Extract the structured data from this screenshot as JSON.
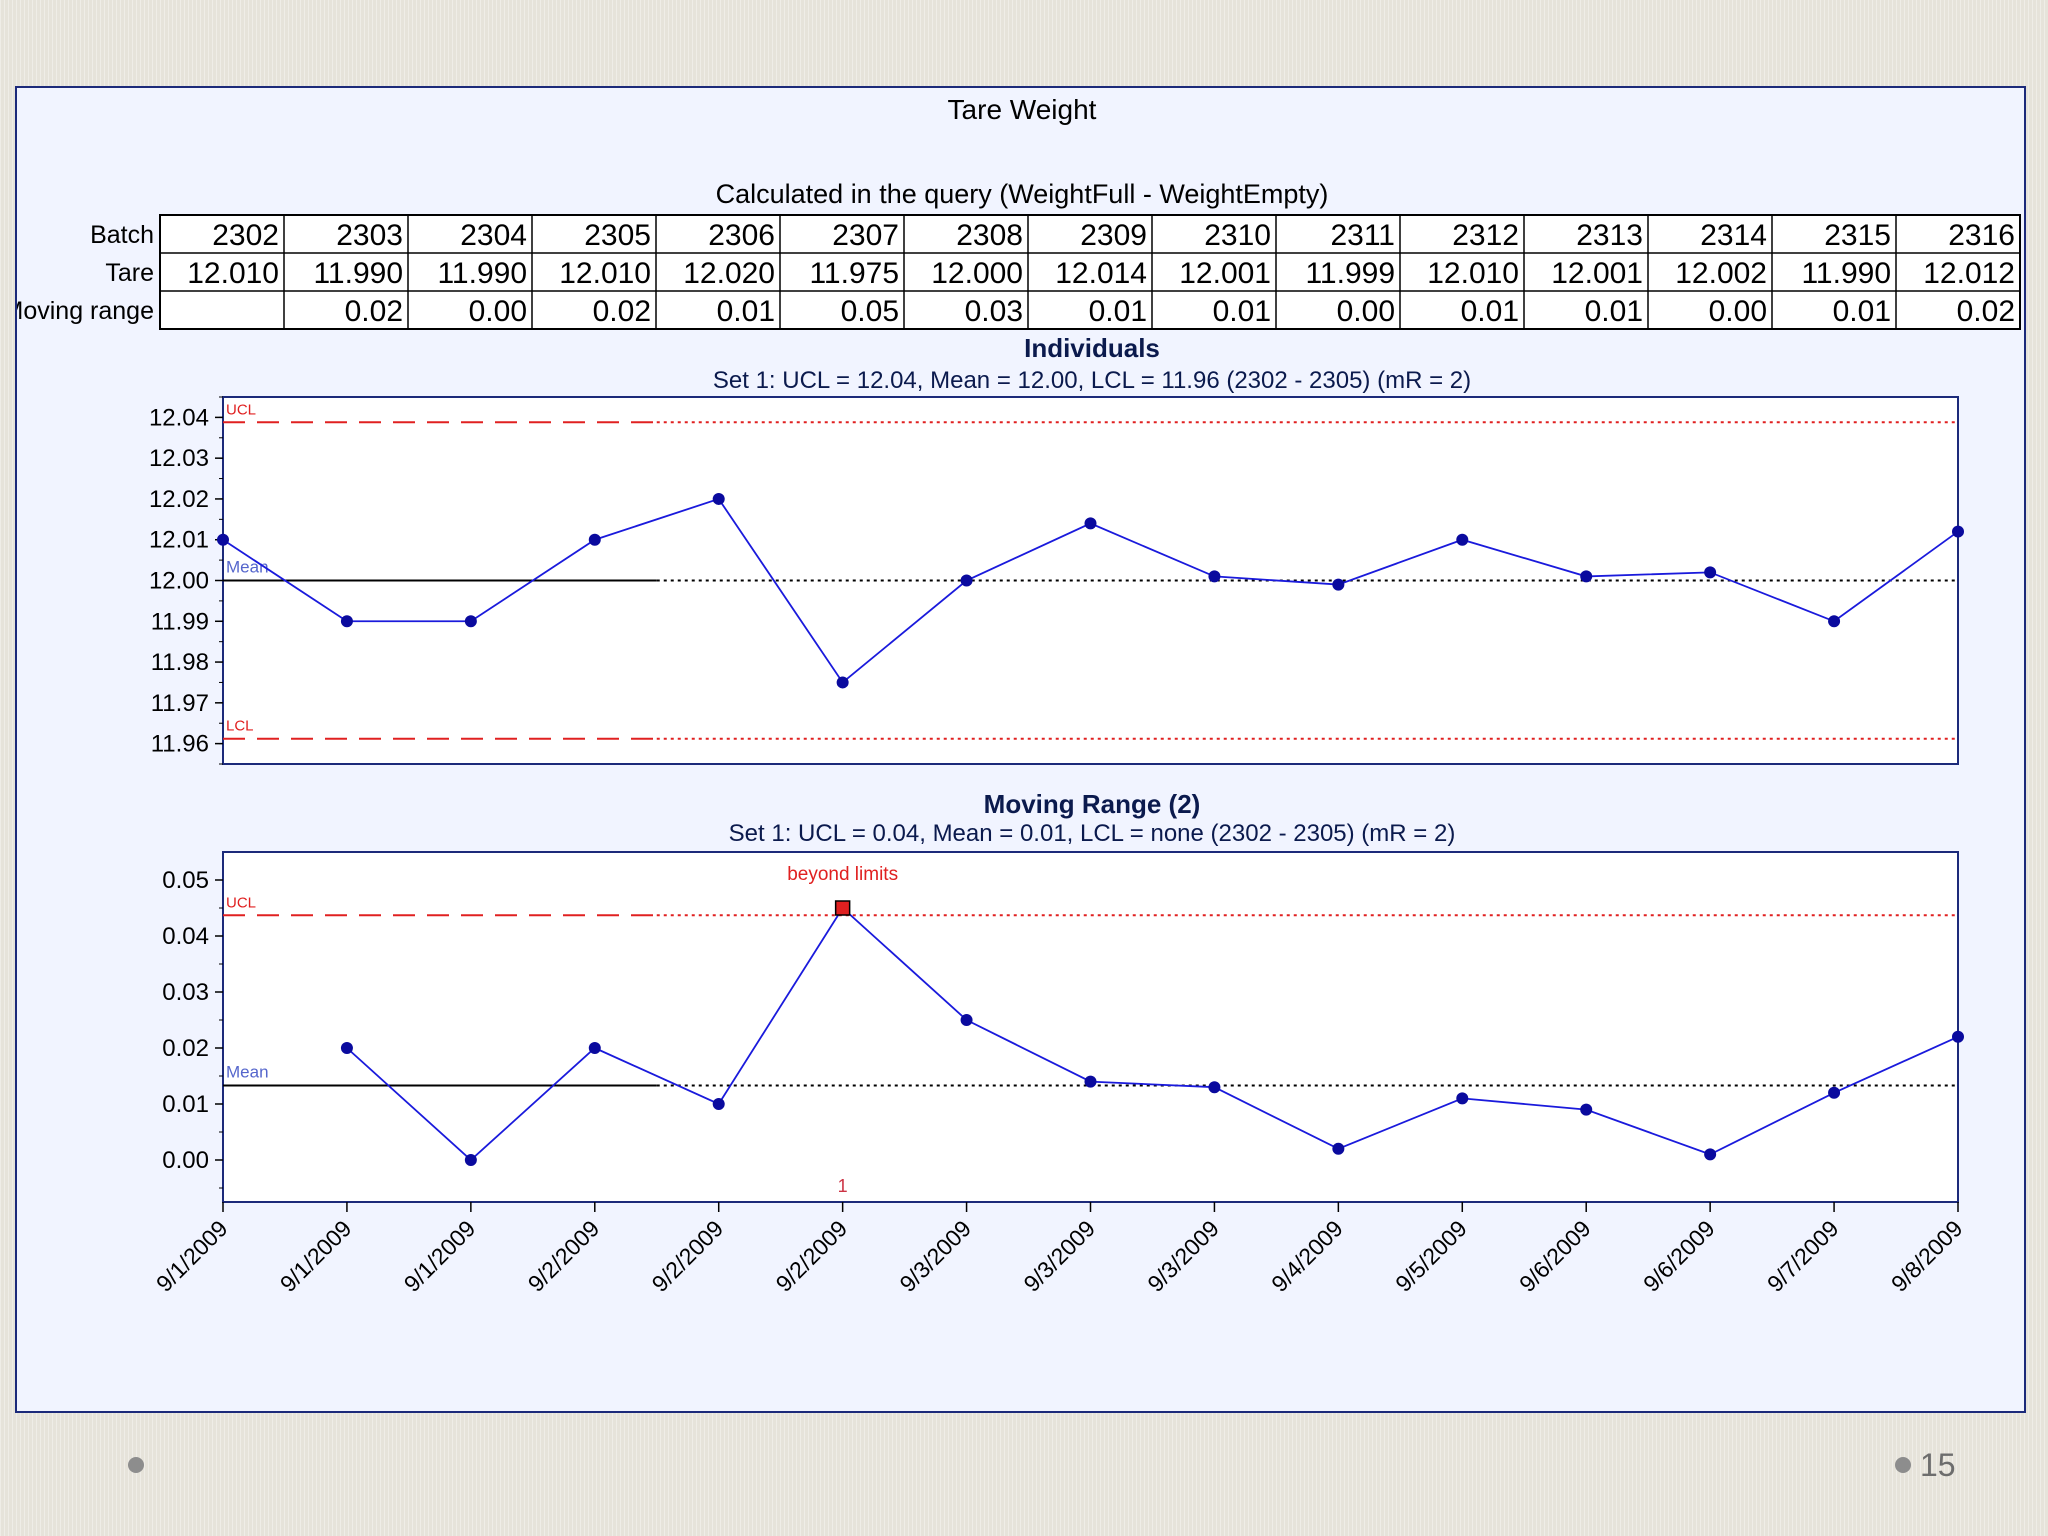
{
  "slide": {
    "page_number": "15"
  },
  "chart_data": {
    "type": "table",
    "title": "Tare Weight",
    "subtitle": "Calculated in the query (WeightFull - WeightEmpty)",
    "table": {
      "row_labels": [
        "Batch",
        "Tare",
        "Moving range"
      ],
      "batch": [
        "2302",
        "2303",
        "2304",
        "2305",
        "2306",
        "2307",
        "2308",
        "2309",
        "2310",
        "2311",
        "2312",
        "2313",
        "2314",
        "2315",
        "2316"
      ],
      "tare": [
        "12.010",
        "11.990",
        "11.990",
        "12.010",
        "12.020",
        "11.975",
        "12.000",
        "12.014",
        "12.001",
        "11.999",
        "12.010",
        "12.001",
        "12.002",
        "11.990",
        "12.012"
      ],
      "moving_range": [
        "",
        "0.02",
        "0.00",
        "0.02",
        "0.01",
        "0.05",
        "0.03",
        "0.01",
        "0.01",
        "0.00",
        "0.01",
        "0.01",
        "0.00",
        "0.01",
        "0.02"
      ]
    },
    "x_dates": [
      "9/1/2009",
      "9/1/2009",
      "9/1/2009",
      "9/2/2009",
      "9/2/2009",
      "9/2/2009",
      "9/3/2009",
      "9/3/2009",
      "9/3/2009",
      "9/4/2009",
      "9/5/2009",
      "9/6/2009",
      "9/6/2009",
      "9/7/2009",
      "9/8/2009"
    ],
    "charts": [
      {
        "type": "line",
        "title": "Individuals",
        "subtitle": "Set 1: UCL = 12.04, Mean = 12.00, LCL = 11.96 (2302 - 2305) (mR = 2)",
        "ylim": [
          11.955,
          12.045
        ],
        "yticks": [
          "12.04",
          "12.03",
          "12.02",
          "12.01",
          "12.00",
          "11.99",
          "11.98",
          "11.97",
          "11.96"
        ],
        "ytick_values": [
          12.04,
          12.03,
          12.02,
          12.01,
          12.0,
          11.99,
          11.98,
          11.97,
          11.96
        ],
        "values": [
          12.01,
          11.99,
          11.99,
          12.01,
          12.02,
          11.975,
          12.0,
          12.014,
          12.001,
          11.999,
          12.01,
          12.001,
          12.002,
          11.99,
          12.012
        ],
        "ucl": 12.0388,
        "mean": 12.0,
        "lcl": 11.9612,
        "line_labels": {
          "ucl": "UCL",
          "mean": "Mean",
          "lcl": "LCL"
        },
        "colors": {
          "series": "#1a1adc",
          "point": "#0a0a9e",
          "limit": "#e02020",
          "mean": "#000000",
          "label_mean": "#5566cc"
        }
      },
      {
        "type": "line",
        "title": "Moving Range (2)",
        "subtitle": "Set 1: UCL = 0.04, Mean = 0.01, LCL = none (2302 - 2305) (mR = 2)",
        "ylim": [
          -0.0075,
          0.055
        ],
        "yticks": [
          "0.05",
          "0.04",
          "0.03",
          "0.02",
          "0.01",
          "0.00"
        ],
        "ytick_values": [
          0.05,
          0.04,
          0.03,
          0.02,
          0.01,
          0.0
        ],
        "values": [
          null,
          0.02,
          0.0,
          0.02,
          0.01,
          0.045,
          0.025,
          0.014,
          0.013,
          0.002,
          0.011,
          0.009,
          0.001,
          0.012,
          0.022
        ],
        "ucl": 0.0437,
        "mean": 0.0133,
        "line_labels": {
          "ucl": "UCL",
          "mean": "Mean"
        },
        "annotation": {
          "index": 5,
          "text": "beyond limits",
          "marker": "1"
        },
        "colors": {
          "series": "#1a1adc",
          "point": "#0a0a9e",
          "limit": "#e02020",
          "mean": "#000000",
          "label_mean": "#5566cc",
          "flag": "#e02020"
        }
      }
    ]
  }
}
